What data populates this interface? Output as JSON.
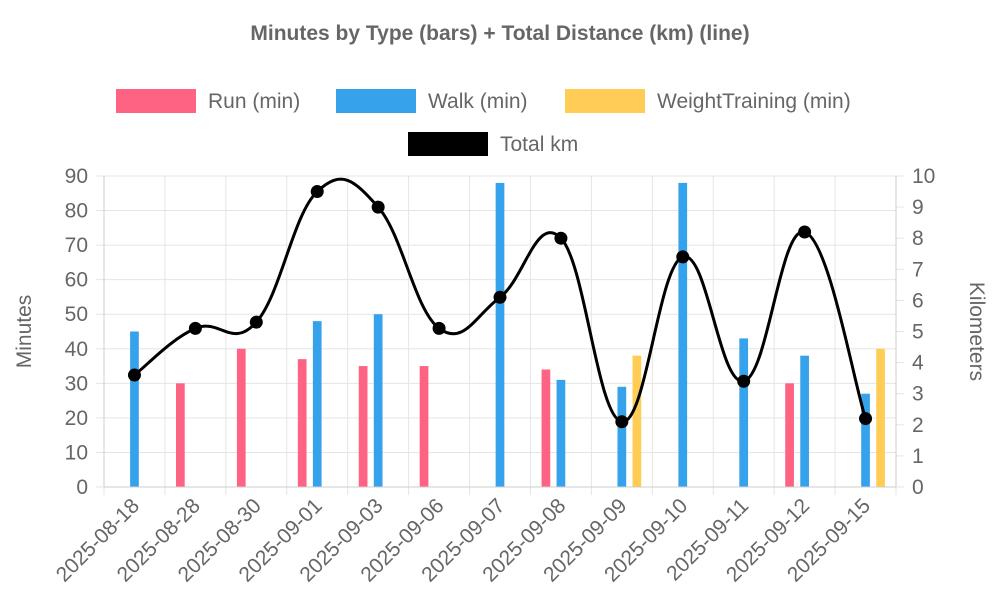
{
  "chart_data": {
    "type": "bar",
    "title": "Minutes by Type (bars) + Total Distance (km) (line)",
    "categories": [
      "2025-08-18",
      "2025-08-28",
      "2025-08-30",
      "2025-09-01",
      "2025-09-03",
      "2025-09-06",
      "2025-09-07",
      "2025-09-08",
      "2025-09-09",
      "2025-09-10",
      "2025-09-11",
      "2025-09-12",
      "2025-09-15"
    ],
    "series": [
      {
        "name": "Run (min)",
        "type": "bar",
        "axis": "left",
        "color": "#ff6384",
        "values": [
          0,
          30,
          40,
          37,
          35,
          35,
          0,
          34,
          0,
          0,
          0,
          30,
          0
        ]
      },
      {
        "name": "Walk (min)",
        "type": "bar",
        "axis": "left",
        "color": "#36a2eb",
        "values": [
          45,
          0,
          0,
          48,
          50,
          0,
          88,
          31,
          29,
          88,
          43,
          38,
          27
        ]
      },
      {
        "name": "WeightTraining (min)",
        "type": "bar",
        "axis": "left",
        "color": "#ffcd56",
        "values": [
          0,
          0,
          0,
          0,
          0,
          0,
          0,
          0,
          38,
          0,
          0,
          0,
          40
        ]
      },
      {
        "name": "Total km",
        "type": "line",
        "axis": "right",
        "color": "#000000",
        "values": [
          3.6,
          5.1,
          5.3,
          9.5,
          9.0,
          5.1,
          6.1,
          8.0,
          2.1,
          7.4,
          3.4,
          8.2,
          2.2
        ]
      }
    ],
    "ylabel": "Minutes",
    "ylim": [
      0,
      90
    ],
    "yticks": [
      0,
      10,
      20,
      30,
      40,
      50,
      60,
      70,
      80,
      90
    ],
    "y2label": "Kilometers",
    "y2lim": [
      0,
      10
    ],
    "y2ticks": [
      0,
      1,
      2,
      3,
      4,
      5,
      6,
      7,
      8,
      9,
      10
    ],
    "grid": true,
    "legend_position": "top"
  }
}
